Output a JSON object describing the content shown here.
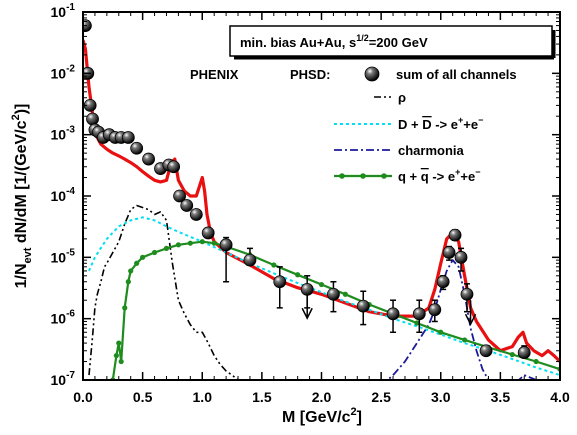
{
  "chart_data": {
    "type": "line",
    "title_box": {
      "main": "min. bias Au+Au,  s",
      "sup": "1/2",
      "tail": "=200 GeV"
    },
    "experiment_label": "PHENIX",
    "model_label": "PHSD:",
    "xlabel": "M  [GeV/c",
    "xlabel_sup": "2",
    "xlabel_tail": "]",
    "ylabel": "1/N",
    "ylabel_sub": "evt",
    "ylabel_tail": " dN/dM  [1/(GeV/c",
    "ylabel_sup": "2",
    "ylabel_end": ")]",
    "xlim": [
      0.0,
      4.0
    ],
    "ylim": [
      1e-07,
      0.1
    ],
    "yscale": "log",
    "x_ticks": [
      "0.0",
      "0.5",
      "1.0",
      "1.5",
      "2.0",
      "2.5",
      "3.0",
      "3.5",
      "4.0"
    ],
    "y_ticks": [
      {
        "base": "10",
        "exp": "-1",
        "value": 0.1
      },
      {
        "base": "10",
        "exp": "-2",
        "value": 0.01
      },
      {
        "base": "10",
        "exp": "-3",
        "value": 0.001
      },
      {
        "base": "10",
        "exp": "-4",
        "value": 0.0001
      },
      {
        "base": "10",
        "exp": "-5",
        "value": 1e-05
      },
      {
        "base": "10",
        "exp": "-6",
        "value": 1e-06
      },
      {
        "base": "10",
        "exp": "-7",
        "value": 1e-07
      }
    ],
    "legend": [
      {
        "label": "sum of all channels",
        "style": "marker",
        "color": "#000000"
      },
      {
        "label": "ρ",
        "style": "dash-dot-dot",
        "color": "#000000"
      },
      {
        "label_parts": [
          "D + ",
          "D",
          " -> e",
          "+",
          "+e",
          "−"
        ],
        "style": "dotted",
        "color": "#00e0f0"
      },
      {
        "label": "charmonia",
        "style": "dash-dot",
        "color": "#1a1a9a"
      },
      {
        "label_parts": [
          "q + ",
          "q",
          " -> e",
          "+",
          "+e",
          "−"
        ],
        "style": "line-dots",
        "color": "#1e8c1e"
      }
    ],
    "series": [
      {
        "name": "sum of all channels",
        "kind": "model",
        "color": "#e81010",
        "x": [
          0.0,
          0.02,
          0.05,
          0.08,
          0.1,
          0.12,
          0.15,
          0.2,
          0.25,
          0.3,
          0.35,
          0.4,
          0.45,
          0.5,
          0.55,
          0.6,
          0.65,
          0.7,
          0.74,
          0.77,
          0.8,
          0.85,
          0.9,
          0.95,
          1.0,
          1.02,
          1.04,
          1.07,
          1.1,
          1.2,
          1.4,
          1.6,
          1.8,
          2.0,
          2.2,
          2.4,
          2.6,
          2.8,
          2.9,
          2.95,
          3.0,
          3.05,
          3.1,
          3.15,
          3.2,
          3.25,
          3.3,
          3.4,
          3.5,
          3.6,
          3.65,
          3.69,
          3.72,
          3.78,
          3.85,
          3.9,
          3.95,
          4.0
        ],
        "y": [
          0.035,
          0.025,
          0.006,
          0.0022,
          0.0013,
          0.0009,
          0.0007,
          0.00058,
          0.0005,
          0.00045,
          0.0004,
          0.00035,
          0.0003,
          0.00025,
          0.00021,
          0.00018,
          0.00017,
          0.00018,
          0.00035,
          0.0004,
          0.00018,
          0.00012,
          0.0001,
          0.0001,
          0.0002,
          0.00012,
          5e-05,
          2.5e-05,
          1.8e-05,
          1.2e-05,
          7.5e-06,
          4.5e-06,
          3.2e-06,
          2.5e-06,
          1.8e-06,
          1.3e-06,
          1.1e-06,
          1.1e-06,
          1.5e-06,
          3e-06,
          8e-06,
          2e-05,
          2.5e-05,
          1.8e-05,
          5e-06,
          1.5e-06,
          9e-07,
          4.5e-07,
          3e-07,
          3.5e-07,
          5e-07,
          6e-07,
          4e-07,
          3e-07,
          2.5e-07,
          3e-07,
          2.5e-07,
          2e-07
        ]
      },
      {
        "name": "ρ",
        "kind": "model",
        "color": "#000000",
        "x": [
          0.05,
          0.08,
          0.1,
          0.12,
          0.15,
          0.18,
          0.2,
          0.25,
          0.3,
          0.35,
          0.4,
          0.45,
          0.5,
          0.55,
          0.6,
          0.65,
          0.7,
          0.75,
          0.8,
          0.85,
          0.9,
          0.95,
          1.0,
          1.05,
          1.1,
          1.15,
          1.2,
          1.25,
          1.3
        ],
        "y": [
          1.2e-07,
          5e-07,
          1.5e-06,
          2.5e-06,
          4e-06,
          7e-06,
          8e-06,
          1.2e-05,
          1.8e-05,
          3.5e-05,
          6e-05,
          7e-05,
          6.5e-05,
          6e-05,
          5e-05,
          5.5e-05,
          4e-05,
          8e-06,
          2e-06,
          1.2e-06,
          8e-07,
          6e-07,
          6e-07,
          4e-07,
          2.5e-07,
          1.8e-07,
          1.4e-07,
          1.2e-07,
          1e-07
        ]
      },
      {
        "name": "D + D -> e+e-",
        "kind": "model",
        "color": "#00e0f0",
        "x": [
          0.05,
          0.1,
          0.2,
          0.3,
          0.4,
          0.5,
          0.6,
          0.7,
          0.8,
          1.0,
          1.2,
          1.4,
          1.6,
          1.8,
          2.0,
          2.2,
          2.4,
          2.6,
          2.8,
          3.0,
          3.2,
          3.4,
          3.6,
          3.8,
          4.0
        ],
        "y": [
          6e-06,
          1e-05,
          2e-05,
          3.2e-05,
          4e-05,
          4.5e-05,
          4e-05,
          3.2e-05,
          2.6e-05,
          1.8e-05,
          1.2e-05,
          8e-06,
          5.5e-06,
          3.8e-06,
          2.7e-06,
          1.9e-06,
          1.4e-06,
          1e-06,
          7.5e-07,
          5.5e-07,
          4e-07,
          3e-07,
          2.2e-07,
          1.6e-07,
          1.2e-07
        ]
      },
      {
        "name": "charmonia",
        "kind": "model",
        "color": "#1a1a9a",
        "x": [
          2.5,
          2.6,
          2.7,
          2.8,
          2.9,
          2.95,
          3.0,
          3.05,
          3.1,
          3.15,
          3.2,
          3.25,
          3.3,
          3.35,
          3.4,
          3.5,
          3.6,
          3.7,
          3.8,
          3.9,
          4.0
        ],
        "y": [
          8e-08,
          1.2e-07,
          2e-07,
          4e-07,
          8e-07,
          1.4e-06,
          3e-06,
          6e-06,
          9e-06,
          7e-06,
          2.5e-06,
          7e-07,
          3e-07,
          1.5e-07,
          1e-07,
          8e-08,
          8e-08,
          1.2e-07,
          1e-07,
          8e-08,
          7e-08
        ]
      },
      {
        "name": "q + q -> e+e-",
        "kind": "model",
        "color": "#1e8c1e",
        "x": [
          0.25,
          0.28,
          0.3,
          0.32,
          0.35,
          0.38,
          0.4,
          0.45,
          0.5,
          0.6,
          0.7,
          0.8,
          0.9,
          1.0,
          1.1,
          1.2,
          1.4,
          1.6,
          1.8,
          2.0,
          2.2,
          2.4,
          2.6,
          2.8,
          3.0,
          3.2,
          3.4,
          3.6,
          3.8,
          4.0
        ],
        "y": [
          1e-07,
          2.5e-07,
          4e-07,
          2e-07,
          1.5e-06,
          4e-06,
          6e-06,
          8e-06,
          1e-05,
          1.2e-05,
          1.4e-05,
          1.6e-05,
          1.7e-05,
          1.8e-05,
          1.7e-05,
          1.5e-05,
          1.1e-05,
          7.5e-06,
          5.2e-06,
          3.6e-06,
          2.5e-06,
          1.7e-06,
          1.2e-06,
          8.5e-07,
          6e-07,
          4.5e-07,
          3.4e-07,
          2.6e-07,
          2e-07,
          1.5e-07
        ]
      }
    ],
    "data_points": {
      "name": "PHENIX",
      "x": [
        0.02,
        0.04,
        0.06,
        0.08,
        0.1,
        0.13,
        0.17,
        0.22,
        0.27,
        0.32,
        0.38,
        0.45,
        0.55,
        0.65,
        0.72,
        0.76,
        0.81,
        0.87,
        0.95,
        1.05,
        1.2,
        1.4,
        1.65,
        1.88,
        2.1,
        2.35,
        2.6,
        2.82,
        2.95,
        3.02,
        3.07,
        3.12,
        3.17,
        3.22,
        3.38,
        3.7
      ],
      "y": [
        0.06,
        0.01,
        0.003,
        0.0018,
        0.0012,
        0.0011,
        0.0009,
        0.001,
        0.0009,
        0.0009,
        0.0009,
        0.0006,
        0.0004,
        0.00028,
        0.00032,
        0.0003,
        0.0001,
        7e-05,
        5e-05,
        2.5e-05,
        1.6e-05,
        9e-06,
        4e-06,
        3e-06,
        2.5e-06,
        1.6e-06,
        1.2e-06,
        1.2e-06,
        1.4e-06,
        4e-06,
        1.2e-05,
        2.3e-05,
        1e-05,
        2.5e-06,
        3e-07,
        2.8e-07
      ],
      "err_low": [
        0.0,
        0.0,
        0.0,
        0.0,
        0.0,
        0.0,
        0.0,
        0.0,
        0.0,
        0.0,
        0.0,
        0.0,
        0.0,
        0.0,
        0.0,
        0.0,
        0.0,
        0.0,
        0.0,
        0.0,
        1.2e-05,
        1.5e-06,
        2.5e-06,
        1.5e-06,
        1.2e-06,
        8e-07,
        6e-07,
        6e-07,
        5e-07,
        1e-06,
        3e-06,
        4e-06,
        4e-06,
        1.2e-06,
        0.0,
        5e-08
      ],
      "err_high": [
        0.0,
        0.0,
        0.0,
        0.0,
        0.0,
        0.0,
        0.0,
        0.0,
        0.0,
        0.0,
        0.0,
        0.0,
        0.0,
        0.0,
        0.0,
        0.0,
        0.0,
        0.0,
        0.0,
        0.0,
        5e-06,
        5e-06,
        3e-06,
        2e-06,
        1.5e-06,
        1.2e-06,
        8e-07,
        8e-07,
        6e-07,
        1e-06,
        3e-06,
        5e-06,
        4e-06,
        1.2e-06,
        0.0,
        8e-08
      ],
      "upper_limits_x": [
        1.88,
        3.25
      ],
      "upper_limits_y": [
        2.5e-06,
        2e-06
      ]
    }
  }
}
